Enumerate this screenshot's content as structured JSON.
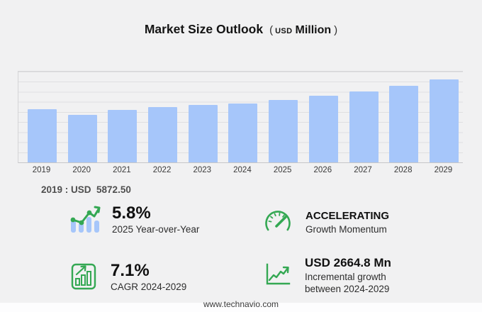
{
  "title": {
    "main": "Market Size Outlook",
    "paren_open": "(",
    "unit_small": "USD",
    "unit_big": "Million",
    "paren_close": ")"
  },
  "chart_data": {
    "type": "bar",
    "title": "Market Size Outlook (USD Million)",
    "categories": [
      "2019",
      "2020",
      "2021",
      "2022",
      "2023",
      "2024",
      "2025",
      "2026",
      "2027",
      "2028",
      "2029"
    ],
    "values": [
      5872.5,
      5225,
      5750,
      6090,
      6300,
      6507.9,
      6885.4,
      7330,
      7850,
      8470,
      9172.7
    ],
    "xlabel": "",
    "ylabel": "",
    "ylim": [
      0,
      10000
    ],
    "grid": true,
    "legend": "none",
    "bar_color": "#a6c6fa"
  },
  "highlight": {
    "text": "2019 : USD  5872.50"
  },
  "stats": {
    "yoy": {
      "value": "5.8%",
      "label": "2025 Year-over-Year",
      "icon": "bar-trend-icon"
    },
    "momentum": {
      "value": "ACCELERATING",
      "label": "Growth Momentum",
      "icon": "gauge-icon"
    },
    "cagr": {
      "value": "7.1%",
      "label": "CAGR 2024-2029",
      "icon": "bar-growth-icon"
    },
    "incremental": {
      "value": "USD 2664.8 Mn",
      "label": "Incremental growth between 2024-2029",
      "icon": "line-growth-icon"
    }
  },
  "footer": {
    "url": "www.technavio.com"
  },
  "colors": {
    "background": "#f1f1f2",
    "bar": "#a6c6fa",
    "green": "#34a853",
    "grid": "#dfdfe1",
    "text_dark": "#101010",
    "text_gray": "#4f4f4f"
  }
}
